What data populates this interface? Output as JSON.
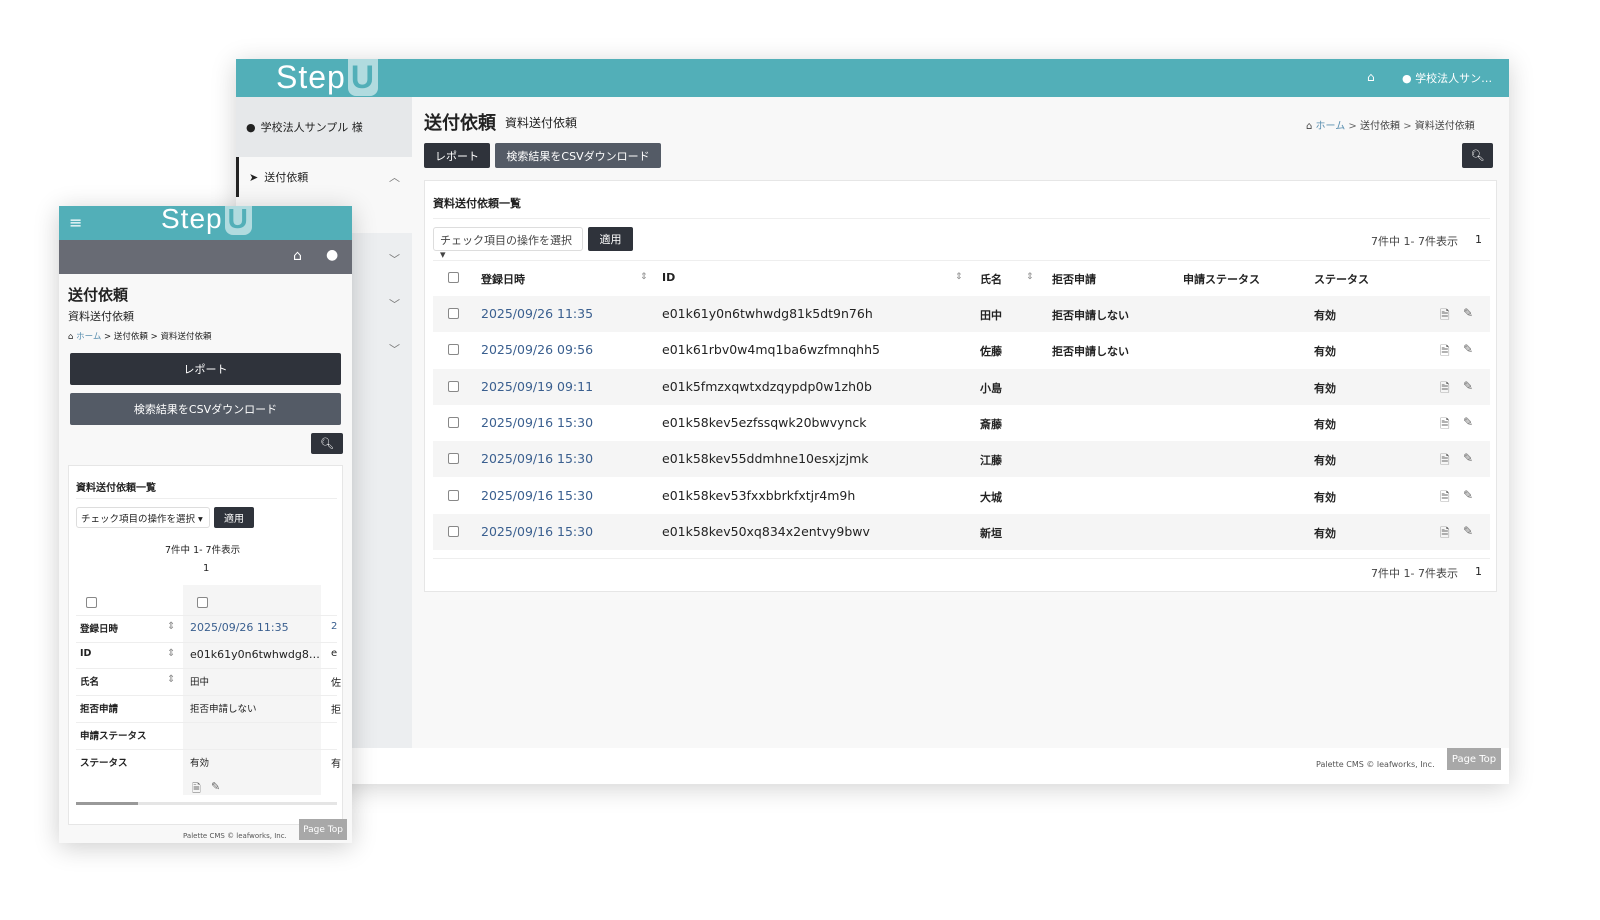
{
  "brand": {
    "logo": "StepU",
    "accent": "#52afb8",
    "dark": "#2f333b"
  },
  "header": {
    "user": "学校法人サン…",
    "home_icon": "home-icon",
    "user_icon": "user-circle-icon"
  },
  "sidebar": {
    "user": "学校法人サンプル 様",
    "items": [
      {
        "label": "送付依頼",
        "icon": "send-icon"
      }
    ]
  },
  "page": {
    "title": "送付依頼",
    "subtitle": "資料送付依頼",
    "breadcrumb": [
      "ホーム",
      "送付依頼",
      "資料送付依頼"
    ],
    "sep": ">"
  },
  "toolbar": {
    "report": "レポート",
    "csv": "検索結果をCSVダウンロード"
  },
  "list": {
    "title": "資料送付依頼一覧",
    "bulk_select": "チェック項目の操作を選択",
    "apply": "適用",
    "count": "7件中 1- 7件表示",
    "page": "1",
    "columns": [
      "登録日時",
      "ID",
      "氏名",
      "拒否申請",
      "申請ステータス",
      "ステータス"
    ],
    "rows": [
      {
        "date": "2025/09/26 11:35",
        "id": "e01k61y0n6twhwdg81k5dt9n76h",
        "name": "田中",
        "refuse": "拒否申請しない",
        "req_status": "",
        "status": "有効"
      },
      {
        "date": "2025/09/26 09:56",
        "id": "e01k61rbv0w4mq1ba6wzfmnqhh5",
        "name": "佐藤",
        "refuse": "拒否申請しない",
        "req_status": "",
        "status": "有効"
      },
      {
        "date": "2025/09/19 09:11",
        "id": "e01k5fmzxqwtxdzqypdp0w1zh0b",
        "name": "小島",
        "refuse": "",
        "req_status": "",
        "status": "有効"
      },
      {
        "date": "2025/09/16 15:30",
        "id": "e01k58kev5ezfssqwk20bwvynck",
        "name": "斎藤",
        "refuse": "",
        "req_status": "",
        "status": "有効"
      },
      {
        "date": "2025/09/16 15:30",
        "id": "e01k58kev55ddmhne10esxjzjmk",
        "name": "江藤",
        "refuse": "",
        "req_status": "",
        "status": "有効"
      },
      {
        "date": "2025/09/16 15:30",
        "id": "e01k58kev53fxxbbrkfxtjr4m9h",
        "name": "大城",
        "refuse": "",
        "req_status": "",
        "status": "有効"
      },
      {
        "date": "2025/09/16 15:30",
        "id": "e01k58kev50xq834x2entvy9bwv",
        "name": "新垣",
        "refuse": "",
        "req_status": "",
        "status": "有効"
      }
    ]
  },
  "mobile": {
    "id_truncated": "e01k61y0n6twhwdg8…",
    "next_col": [
      "2",
      "e",
      "佐",
      "拒",
      "",
      "有"
    ]
  },
  "footer": {
    "copyright": "Palette CMS © leafworks, Inc.",
    "page_top": "Page Top"
  }
}
